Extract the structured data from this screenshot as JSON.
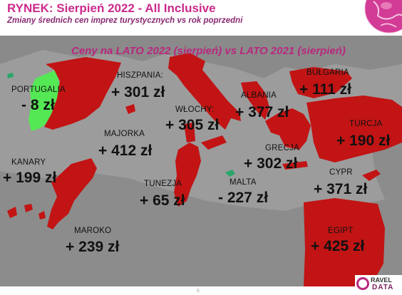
{
  "header": {
    "title": "RYNEK: Sierpień 2022 - All Inclusive",
    "subtitle": "Zmiany średnich cen imprez turystycznych vs rok poprzedni"
  },
  "chart_title": "Ceny na LATO 2022 (sierpień) vs  LATO 2021 (sierpień)",
  "regions": [
    {
      "id": "portugalia",
      "name": "PORTUGALIA",
      "change": "- 8 zł",
      "value": -8,
      "color": "#55e855"
    },
    {
      "id": "hiszpania",
      "name": "HISZPANIA:",
      "change": "+ 301 zł",
      "value": 301,
      "color": "#c21414"
    },
    {
      "id": "majorka",
      "name": "MAJORKA",
      "change": "+ 412 zł",
      "value": 412,
      "color": "#c21414"
    },
    {
      "id": "kanary",
      "name": "KANARY",
      "change": "+ 199 zł",
      "value": 199,
      "color": "#c21414"
    },
    {
      "id": "maroko",
      "name": "MAROKO",
      "change": "+ 239 zł",
      "value": 239,
      "color": "#c21414"
    },
    {
      "id": "wlochy",
      "name": "WŁOCHY:",
      "change": "+ 305 zł",
      "value": 305,
      "color": "#c21414"
    },
    {
      "id": "tunezja",
      "name": "TUNEZJA",
      "change": "+ 65 zł",
      "value": 65,
      "color": "#c21414"
    },
    {
      "id": "malta",
      "name": "MALTA",
      "change": "- 227 zł",
      "value": -227,
      "color": "#2aa66a"
    },
    {
      "id": "albania",
      "name": "ALBANIA",
      "change": "+ 377 zł",
      "value": 377,
      "color": "#c21414"
    },
    {
      "id": "grecja",
      "name": "GRECJA",
      "change": "+ 302 zł",
      "value": 302,
      "color": "#c21414"
    },
    {
      "id": "bulgaria",
      "name": "BUŁGARIA",
      "change": "+ 111 zł",
      "value": 111,
      "color": "#c21414"
    },
    {
      "id": "turcja",
      "name": "TURCJA",
      "change": "+ 190 zł",
      "value": 190,
      "color": "#c21414"
    },
    {
      "id": "cypr",
      "name": "CYPR",
      "change": "+ 371 zł",
      "value": 371,
      "color": "#c21414"
    },
    {
      "id": "egipt",
      "name": "EGIPT",
      "change": "+ 425 zł",
      "value": 425,
      "color": "#c21414"
    }
  ],
  "footer": {
    "page_number": "8",
    "logo_line1": "RAVEL",
    "logo_line2": "DATA"
  }
}
